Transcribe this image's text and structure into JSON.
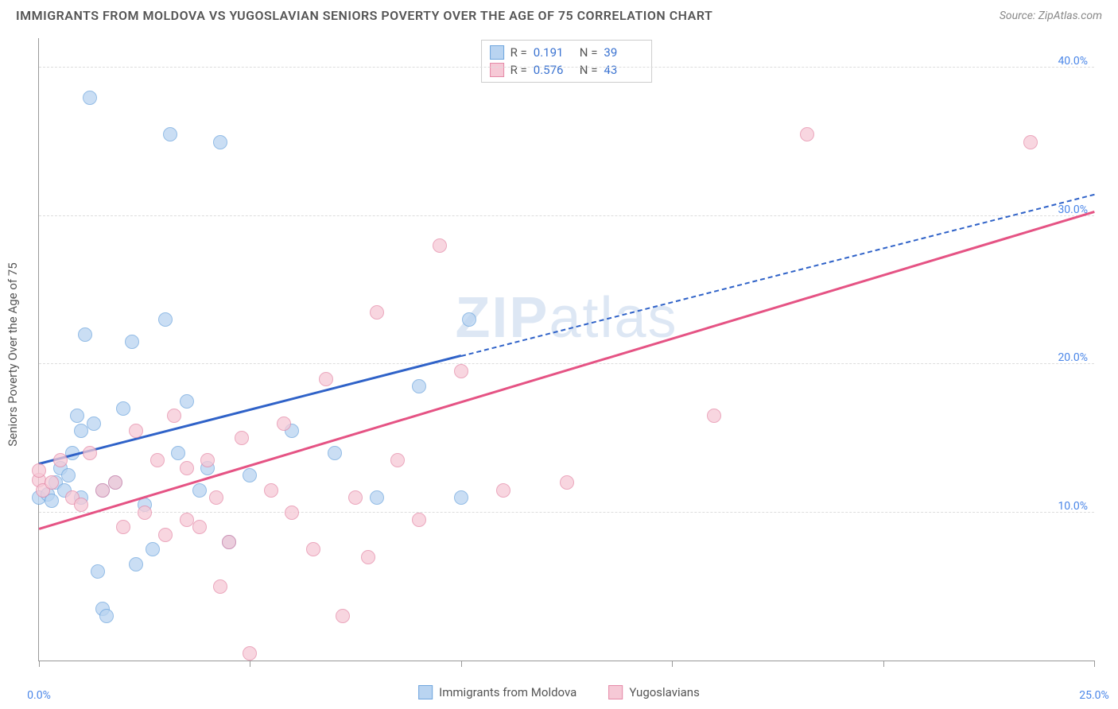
{
  "title": "IMMIGRANTS FROM MOLDOVA VS YUGOSLAVIAN SENIORS POVERTY OVER THE AGE OF 75 CORRELATION CHART",
  "source": "Source: ZipAtlas.com",
  "y_axis_label": "Seniors Poverty Over the Age of 75",
  "watermark_bold": "ZIP",
  "watermark_light": "atlas",
  "chart": {
    "type": "scatter",
    "x_range": [
      0,
      25
    ],
    "y_range": [
      0,
      42
    ],
    "x_ticks": [
      0,
      5,
      10,
      15,
      20,
      25
    ],
    "x_tick_labels": {
      "0": "0.0%",
      "25": "25.0%"
    },
    "y_grid": [
      10,
      20,
      30,
      40
    ],
    "y_tick_labels": {
      "10": "10.0%",
      "20": "20.0%",
      "30": "30.0%",
      "40": "40.0%"
    },
    "background_color": "#ffffff",
    "grid_color": "#dddddd",
    "axis_color": "#999999",
    "tick_label_color": "#4a86e8",
    "watermark_color": "rgba(120,160,210,0.25)"
  },
  "series": [
    {
      "key": "moldova",
      "label": "Immigrants from Moldova",
      "R": "0.191",
      "N": "39",
      "fill": "#b9d4f1",
      "stroke": "#6fa6de",
      "line_color": "#2f62c8",
      "marker_r": 9,
      "trend": {
        "x1": 0,
        "y1": 13.2,
        "x2": 10,
        "y2": 20.5,
        "dash_to_x": 25,
        "dash_to_y": 31.4
      },
      "points": [
        [
          0.0,
          11.0
        ],
        [
          0.2,
          11.2
        ],
        [
          0.3,
          10.8
        ],
        [
          0.4,
          12.0
        ],
        [
          0.5,
          13.0
        ],
        [
          0.6,
          11.5
        ],
        [
          0.7,
          12.5
        ],
        [
          0.8,
          14.0
        ],
        [
          0.9,
          16.5
        ],
        [
          1.0,
          11.0
        ],
        [
          1.1,
          22.0
        ],
        [
          1.2,
          38.0
        ],
        [
          1.3,
          16.0
        ],
        [
          1.4,
          6.0
        ],
        [
          1.5,
          3.5
        ],
        [
          1.6,
          3.0
        ],
        [
          1.8,
          12.0
        ],
        [
          2.0,
          17.0
        ],
        [
          2.2,
          21.5
        ],
        [
          2.5,
          10.5
        ],
        [
          2.7,
          7.5
        ],
        [
          3.0,
          23.0
        ],
        [
          3.1,
          35.5
        ],
        [
          3.3,
          14.0
        ],
        [
          3.5,
          17.5
        ],
        [
          3.8,
          11.5
        ],
        [
          4.0,
          13.0
        ],
        [
          4.3,
          35.0
        ],
        [
          4.5,
          8.0
        ],
        [
          5.0,
          12.5
        ],
        [
          6.0,
          15.5
        ],
        [
          7.0,
          14.0
        ],
        [
          8.0,
          11.0
        ],
        [
          9.0,
          18.5
        ],
        [
          10.0,
          11.0
        ],
        [
          10.2,
          23.0
        ],
        [
          1.0,
          15.5
        ],
        [
          1.5,
          11.5
        ],
        [
          2.3,
          6.5
        ]
      ]
    },
    {
      "key": "yugoslavians",
      "label": "Yugoslavians",
      "R": "0.576",
      "N": "43",
      "fill": "#f6c9d6",
      "stroke": "#e58aa8",
      "line_color": "#e55384",
      "marker_r": 9,
      "trend": {
        "x1": 0,
        "y1": 8.8,
        "x2": 25,
        "y2": 30.2
      },
      "points": [
        [
          0.0,
          12.2
        ],
        [
          0.0,
          12.8
        ],
        [
          0.1,
          11.5
        ],
        [
          0.3,
          12.0
        ],
        [
          0.5,
          13.5
        ],
        [
          0.8,
          11.0
        ],
        [
          1.0,
          10.5
        ],
        [
          1.2,
          14.0
        ],
        [
          1.5,
          11.5
        ],
        [
          1.8,
          12.0
        ],
        [
          2.0,
          9.0
        ],
        [
          2.3,
          15.5
        ],
        [
          2.5,
          10.0
        ],
        [
          2.8,
          13.5
        ],
        [
          3.0,
          8.5
        ],
        [
          3.2,
          16.5
        ],
        [
          3.5,
          13.0
        ],
        [
          3.8,
          9.0
        ],
        [
          4.0,
          13.5
        ],
        [
          4.3,
          5.0
        ],
        [
          4.5,
          8.0
        ],
        [
          4.8,
          15.0
        ],
        [
          5.0,
          0.5
        ],
        [
          5.5,
          11.5
        ],
        [
          5.8,
          16.0
        ],
        [
          6.0,
          10.0
        ],
        [
          6.5,
          7.5
        ],
        [
          6.8,
          19.0
        ],
        [
          7.2,
          3.0
        ],
        [
          7.5,
          11.0
        ],
        [
          7.8,
          7.0
        ],
        [
          8.0,
          23.5
        ],
        [
          8.5,
          13.5
        ],
        [
          9.0,
          9.5
        ],
        [
          9.5,
          28.0
        ],
        [
          10.0,
          19.5
        ],
        [
          11.0,
          11.5
        ],
        [
          12.5,
          12.0
        ],
        [
          16.0,
          16.5
        ],
        [
          18.2,
          35.5
        ],
        [
          23.5,
          35.0
        ],
        [
          3.5,
          9.5
        ],
        [
          4.2,
          11.0
        ]
      ]
    }
  ],
  "stat_legend": {
    "R_label": "R =",
    "N_label": "N ="
  },
  "bottom_legend_labels": [
    "Immigrants from Moldova",
    "Yugoslavians"
  ]
}
